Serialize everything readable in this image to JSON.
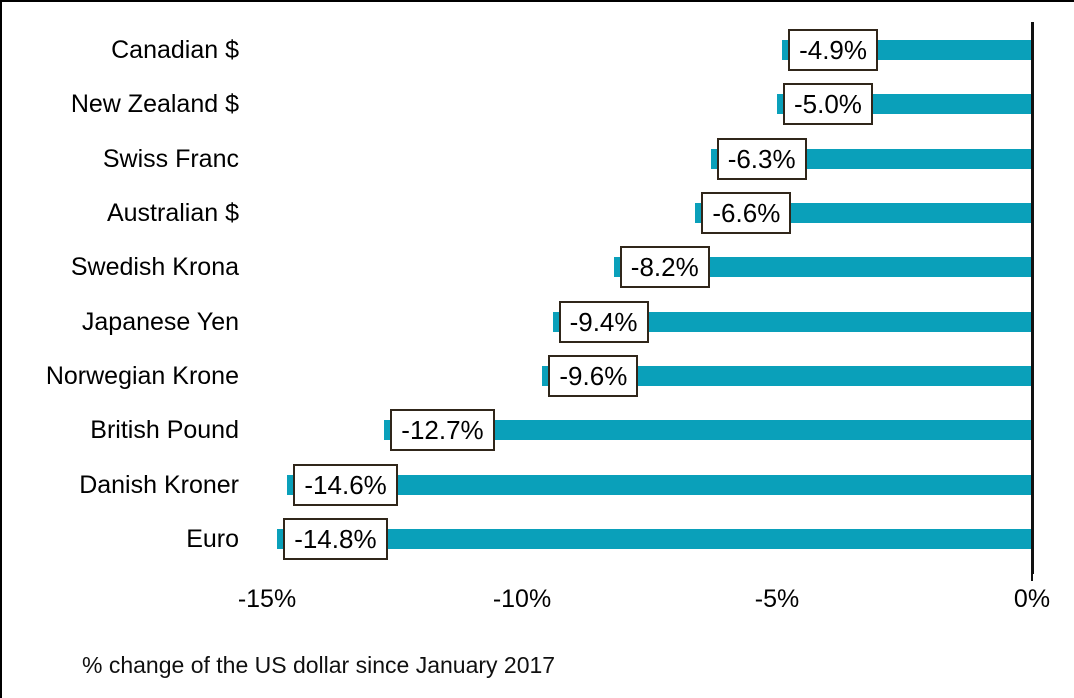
{
  "chart_data": {
    "type": "bar",
    "orientation": "horizontal",
    "title": "",
    "caption": "% change of the US dollar since January 2017",
    "categories": [
      "Canadian $",
      "New Zealand $",
      "Swiss Franc",
      "Australian $",
      "Swedish Krona",
      "Japanese Yen",
      "Norwegian Krone",
      "British Pound",
      "Danish Kroner",
      "Euro"
    ],
    "values": [
      -4.9,
      -5.0,
      -6.3,
      -6.6,
      -8.2,
      -9.4,
      -9.6,
      -12.7,
      -14.6,
      -14.8
    ],
    "bar_labels": [
      "-4.9%",
      "-5.0%",
      "-6.3%",
      "-6.6%",
      "-8.2%",
      "-9.4%",
      "-9.6%",
      "-12.7%",
      "-14.6%",
      "-14.8%"
    ],
    "x_ticks": [
      {
        "label": "-15%",
        "value": -15
      },
      {
        "label": "-10%",
        "value": -10
      },
      {
        "label": "-5%",
        "value": -5
      },
      {
        "label": "0%",
        "value": 0
      }
    ],
    "xlim": [
      -16,
      0
    ],
    "grid": false,
    "legend": null,
    "colors": {
      "bar": "#0aa0ba",
      "axis": "#111111",
      "label_box_border": "#30261a",
      "label_box_background": "#ffffff",
      "text": "#000000"
    }
  }
}
